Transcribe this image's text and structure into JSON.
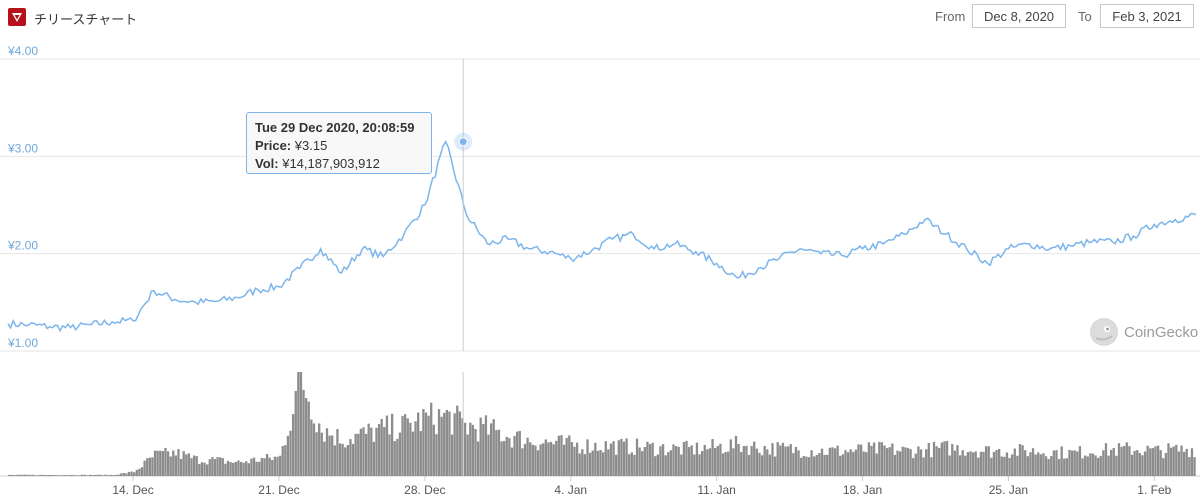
{
  "header": {
    "title": "チリースチャート",
    "from_label": "From",
    "from_value": "Dec 8, 2020",
    "to_label": "To",
    "to_value": "Feb 3, 2021"
  },
  "tooltip": {
    "date": "Tue 29 Dec 2020, 20:08:59",
    "price_label": "Price:",
    "price_value": "¥3.15",
    "vol_label": "Vol:",
    "vol_value": "¥14,187,903,912"
  },
  "brand": "CoinGecko",
  "colors": {
    "line": "#7cb5ec",
    "volume": "#8c8c8c",
    "grid": "#e6e6e6",
    "axis_label": "#6fa8dc"
  },
  "chart_data": {
    "type": "line",
    "y_axis": {
      "ticks": [
        "¥1.00",
        "¥2.00",
        "¥3.00",
        "¥4.00"
      ],
      "ylim": [
        1,
        4
      ]
    },
    "x_axis": {
      "tick_labels": [
        "14. Dec",
        "21. Dec",
        "28. Dec",
        "4. Jan",
        "11. Jan",
        "18. Jan",
        "25. Jan",
        "1. Feb"
      ],
      "range": [
        "2020-12-08",
        "2021-02-03"
      ]
    },
    "series": [
      {
        "x": [
          "2020-12-08",
          "2020-12-09",
          "2020-12-10",
          "2020-12-11",
          "2020-12-12",
          "2020-12-13",
          "2020-12-14",
          "2020-12-15",
          "2020-12-16",
          "2020-12-17",
          "2020-12-18",
          "2020-12-19",
          "2020-12-20",
          "2020-12-21",
          "2020-12-22",
          "2020-12-23",
          "2020-12-24",
          "2020-12-25",
          "2020-12-26",
          "2020-12-27",
          "2020-12-28",
          "2020-12-29",
          "2020-12-30",
          "2020-12-31",
          "2021-01-01",
          "2021-01-02",
          "2021-01-03",
          "2021-01-04",
          "2021-01-05",
          "2021-01-06",
          "2021-01-07",
          "2021-01-08",
          "2021-01-09",
          "2021-01-10",
          "2021-01-11",
          "2021-01-12",
          "2021-01-13",
          "2021-01-14",
          "2021-01-15",
          "2021-01-16",
          "2021-01-17",
          "2021-01-18",
          "2021-01-19",
          "2021-01-20",
          "2021-01-21",
          "2021-01-22",
          "2021-01-23",
          "2021-01-24",
          "2021-01-25",
          "2021-01-26",
          "2021-01-27",
          "2021-01-28",
          "2021-01-29",
          "2021-01-30",
          "2021-01-31",
          "2021-02-01",
          "2021-02-02",
          "2021-02-03"
        ],
        "values": [
          1.28,
          1.27,
          1.25,
          1.24,
          1.27,
          1.3,
          1.31,
          1.62,
          1.53,
          1.5,
          1.51,
          1.55,
          1.63,
          1.66,
          1.85,
          2.05,
          1.8,
          2.05,
          1.97,
          2.2,
          2.5,
          3.15,
          2.4,
          2.1,
          2.15,
          2.05,
          2.02,
          1.95,
          2.03,
          2.15,
          2.2,
          2.05,
          2.1,
          2.02,
          1.9,
          1.75,
          1.85,
          1.95,
          2.05,
          2.0,
          1.98,
          2.05,
          2.1,
          2.2,
          2.35,
          2.2,
          2.05,
          1.9,
          2.05,
          2.1,
          2.05,
          2.08,
          2.12,
          2.12,
          2.18,
          2.3,
          2.35,
          2.4
        ]
      },
      {
        "x": [
          "2020-12-08",
          "2020-12-09",
          "2020-12-10",
          "2020-12-11",
          "2020-12-12",
          "2020-12-13",
          "2020-12-14",
          "2020-12-15",
          "2020-12-16",
          "2020-12-17",
          "2020-12-18",
          "2020-12-19",
          "2020-12-20",
          "2020-12-21",
          "2020-12-22",
          "2020-12-23",
          "2020-12-24",
          "2020-12-25",
          "2020-12-26",
          "2020-12-27",
          "2020-12-28",
          "2020-12-29",
          "2020-12-30",
          "2020-12-31",
          "2021-01-01",
          "2021-01-02",
          "2021-01-03",
          "2021-01-04",
          "2021-01-05",
          "2021-01-06",
          "2021-01-07",
          "2021-01-08",
          "2021-01-09",
          "2021-01-10",
          "2021-01-11",
          "2021-01-12",
          "2021-01-13",
          "2021-01-14",
          "2021-01-15",
          "2021-01-16",
          "2021-01-17",
          "2021-01-18",
          "2021-01-19",
          "2021-01-20",
          "2021-01-21",
          "2021-01-22",
          "2021-01-23",
          "2021-01-24",
          "2021-01-25",
          "2021-01-26",
          "2021-01-27",
          "2021-01-28",
          "2021-01-29",
          "2021-01-30",
          "2021-01-31",
          "2021-02-01",
          "2021-02-02",
          "2021-02-03"
        ],
        "values": [
          0.01,
          0.01,
          0.01,
          0.01,
          0.01,
          0.01,
          0.04,
          0.2,
          0.22,
          0.16,
          0.15,
          0.13,
          0.16,
          0.18,
          0.95,
          0.45,
          0.35,
          0.4,
          0.45,
          0.48,
          0.55,
          0.57,
          0.48,
          0.45,
          0.38,
          0.34,
          0.32,
          0.3,
          0.29,
          0.29,
          0.28,
          0.27,
          0.26,
          0.26,
          0.28,
          0.3,
          0.27,
          0.26,
          0.25,
          0.24,
          0.24,
          0.25,
          0.26,
          0.24,
          0.25,
          0.27,
          0.26,
          0.24,
          0.24,
          0.24,
          0.23,
          0.22,
          0.24,
          0.25,
          0.26,
          0.24,
          0.25,
          0.26
        ]
      }
    ],
    "marker": {
      "x": "2020-12-29",
      "y": 3.15
    },
    "grid": true,
    "legend": "none"
  }
}
